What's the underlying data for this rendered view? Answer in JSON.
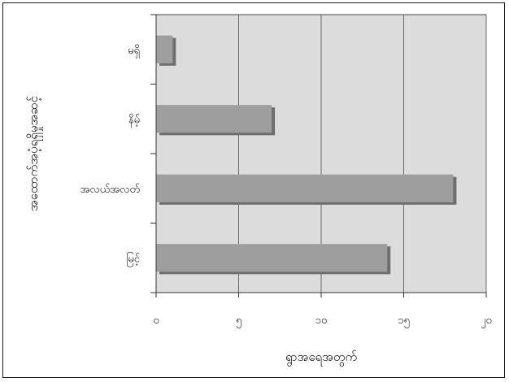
{
  "chart_data": {
    "type": "bar",
    "orientation": "horizontal",
    "categories": [
      "မရှိ",
      "နိမ့်",
      "အလယ်အလတ်",
      "မြင့်"
    ],
    "values": [
      1,
      7,
      18,
      14
    ],
    "xticks": [
      "၀",
      "၅",
      "၁၀",
      "၁၅",
      "၂၀"
    ],
    "xtick_values": [
      0,
      5,
      10,
      15,
      20
    ],
    "xlim": [
      0,
      20
    ],
    "xlabel": "ရွာအရေအတွက်",
    "ylabel": "အထောက်အပံ့ရရှိမှုအဆင့်",
    "grid": true,
    "colors": {
      "bar": "#9e9e9e",
      "bar_shadow": "#6e6e6e",
      "plot_background": "#dcdcdc",
      "gridline": "#6a6a6a"
    }
  }
}
